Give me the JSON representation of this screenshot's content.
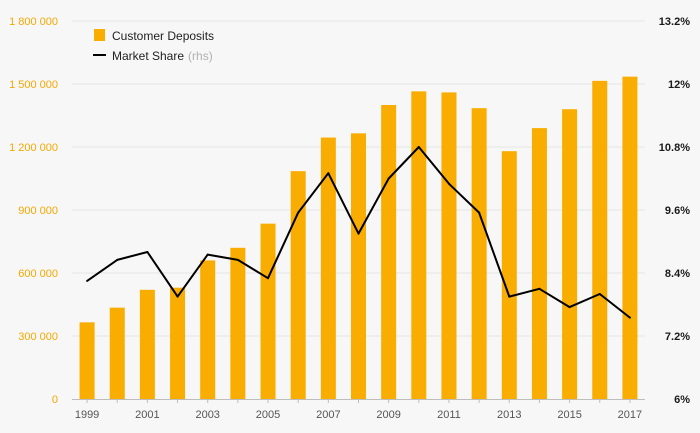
{
  "chart_data": {
    "type": "bar",
    "categories": [
      "1999",
      "2000",
      "2001",
      "2002",
      "2003",
      "2004",
      "2005",
      "2006",
      "2007",
      "2008",
      "2009",
      "2010",
      "2011",
      "2012",
      "2013",
      "2014",
      "2015",
      "2016",
      "2017"
    ],
    "x_tick_labels": [
      "1999",
      "2001",
      "2003",
      "2005",
      "2007",
      "2009",
      "2011",
      "2013",
      "2015",
      "2017"
    ],
    "series": [
      {
        "name": "Customer Deposits",
        "type": "bar",
        "axis": "left",
        "color": "#f9ad00",
        "values": [
          365000,
          435000,
          520000,
          530000,
          660000,
          720000,
          835000,
          1085000,
          1245000,
          1265000,
          1400000,
          1465000,
          1460000,
          1385000,
          1180000,
          1290000,
          1380000,
          1515000,
          1535000
        ]
      },
      {
        "name": "Market Share",
        "type": "line",
        "axis": "right",
        "color": "#000000",
        "values": [
          8.25,
          8.65,
          8.8,
          7.95,
          8.75,
          8.65,
          8.3,
          9.55,
          10.3,
          9.15,
          10.2,
          10.8,
          10.1,
          9.55,
          7.95,
          8.1,
          7.75,
          8.0,
          7.55
        ]
      }
    ],
    "legend": {
      "position": "top-left",
      "deposits_label": "Customer Deposits",
      "share_label": "Market Share",
      "share_suffix": "(rhs)"
    },
    "y_left": {
      "ylim": [
        0,
        1800000
      ],
      "ticks": [
        0,
        300000,
        600000,
        900000,
        1200000,
        1500000,
        1800000
      ],
      "tick_labels": [
        "0",
        "300 000",
        "600 000",
        "900 000",
        "1 200 000",
        "1 500 000",
        "1 800 000"
      ],
      "color": "#f5a800"
    },
    "y_right": {
      "ylim": [
        6,
        13.2
      ],
      "ticks": [
        6,
        7.2,
        8.4,
        9.6,
        10.8,
        12,
        13.2
      ],
      "tick_labels": [
        "6%",
        "7.2%",
        "8.4%",
        "9.6%",
        "10.8%",
        "12%",
        "13.2%"
      ],
      "color": "#1a1a1a"
    },
    "grid": true
  }
}
